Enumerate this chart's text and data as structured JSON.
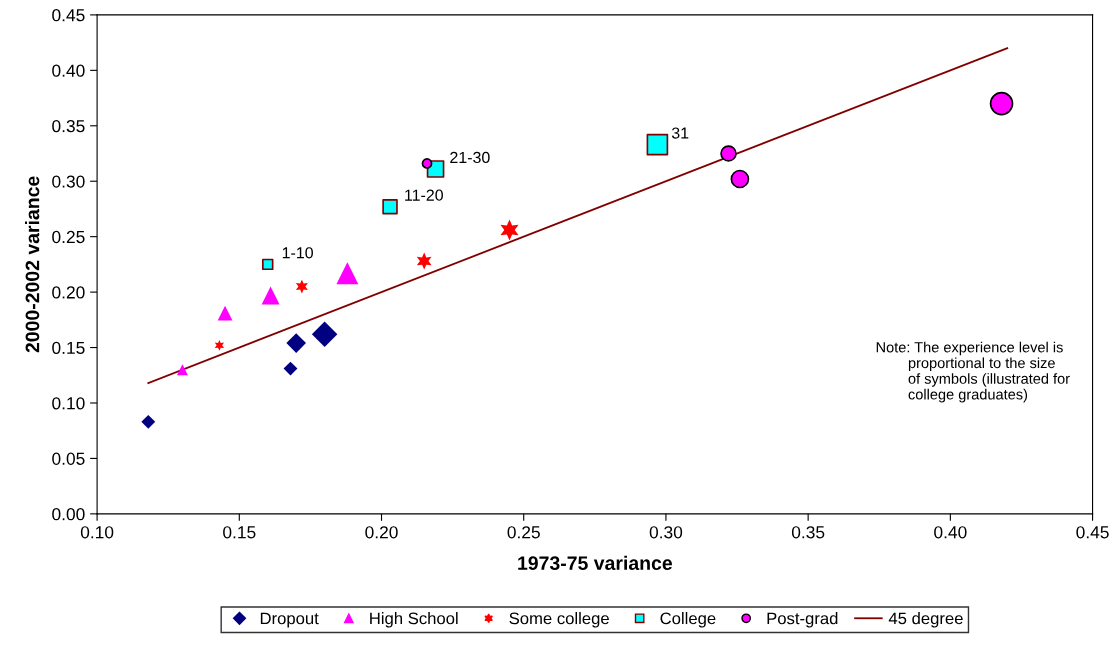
{
  "chart_data": {
    "type": "bubble",
    "xlabel": "1973-75 variance",
    "ylabel": "2000-2002 variance",
    "xlim": [
      0.1,
      0.45
    ],
    "ylim": [
      0,
      0.45
    ],
    "xticks": [
      {
        "value": 0.1,
        "label": "0.10"
      },
      {
        "value": 0.15,
        "label": "0.15"
      },
      {
        "value": 0.2,
        "label": "0.20"
      },
      {
        "value": 0.25,
        "label": "0.25"
      },
      {
        "value": 0.3,
        "label": "0.30"
      },
      {
        "value": 0.35,
        "label": "0.35"
      },
      {
        "value": 0.4,
        "label": "0.40"
      },
      {
        "value": 0.45,
        "label": "0.45"
      }
    ],
    "yticks": [
      {
        "value": 0,
        "label": "0.00"
      },
      {
        "value": 0.05,
        "label": "0.05"
      },
      {
        "value": 0.1,
        "label": "0.10"
      },
      {
        "value": 0.15,
        "label": "0.15"
      },
      {
        "value": 0.2,
        "label": "0.20"
      },
      {
        "value": 0.25,
        "label": "0.25"
      },
      {
        "value": 0.3,
        "label": "0.30"
      },
      {
        "value": 0.35,
        "label": "0.35"
      },
      {
        "value": 0.4,
        "label": "0.40"
      },
      {
        "value": 0.45,
        "label": "0.45"
      }
    ],
    "grid": false,
    "legend": "bottom",
    "series": [
      {
        "name": "Dropout",
        "marker": "diamond",
        "color": "#000080",
        "x": [
          0.118,
          0.168,
          0.17,
          0.18
        ],
        "values": [
          0.083,
          0.131,
          0.154,
          0.162
        ],
        "sizes": [
          0.24,
          0.24,
          0.48,
          0.81
        ]
      },
      {
        "name": "High School",
        "marker": "triangle",
        "color": "#ff00ff",
        "x": [
          0.13,
          0.145,
          0.161,
          0.188
        ],
        "values": [
          0.13,
          0.181,
          0.197,
          0.217
        ],
        "sizes": [
          0.15,
          0.27,
          0.4,
          0.6
        ]
      },
      {
        "name": "Some college",
        "marker": "cross",
        "color": "#ff0000",
        "x": [
          0.143,
          0.172,
          0.215,
          0.245
        ],
        "values": [
          0.152,
          0.205,
          0.228,
          0.256
        ],
        "sizes": [
          0.11,
          0.18,
          0.27,
          0.41
        ]
      },
      {
        "name": "College",
        "marker": "square",
        "color": "#00ffff",
        "x": [
          0.16,
          0.203,
          0.219,
          0.297
        ],
        "values": [
          0.225,
          0.277,
          0.311,
          0.333
        ],
        "sizes": [
          0.24,
          0.48,
          0.64,
          1
        ]
      },
      {
        "name": "Post-grad",
        "marker": "circle",
        "color": "#ff00ff",
        "x": [
          0.216,
          0.322,
          0.326,
          0.418
        ],
        "values": [
          0.316,
          0.325,
          0.302,
          0.37
        ],
        "sizes": [
          0.16,
          0.43,
          0.56,
          0.93
        ]
      },
      {
        "name": "45 degree",
        "type": "line",
        "marker": "none",
        "color": "#800000",
        "x": [
          0.118,
          0.42
        ],
        "values": [
          0.118,
          0.42
        ]
      }
    ],
    "annotations": [
      {
        "text": "1-10",
        "x": 0.16,
        "y": 0.225
      },
      {
        "text": "11-20",
        "x": 0.203,
        "y": 0.277
      },
      {
        "text": "21-30",
        "x": 0.219,
        "y": 0.311
      },
      {
        "text": "31",
        "x": 0.297,
        "y": 0.333
      },
      "Note: The experience level is\n        proportional to the size\n        of symbols (illustrated for\n        college graduates)"
    ]
  }
}
